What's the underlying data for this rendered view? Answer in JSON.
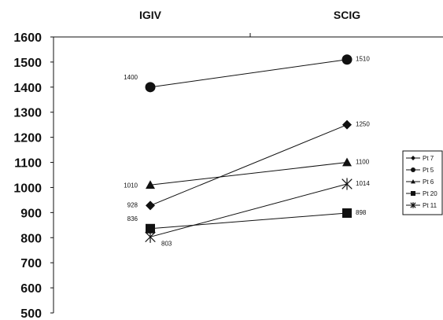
{
  "chart_data": {
    "type": "line",
    "title": "",
    "xlabel": "",
    "ylabel": "",
    "categories": [
      "IGIV",
      "SCIG"
    ],
    "ylim": [
      500,
      1600
    ],
    "yticks": [
      500,
      600,
      700,
      800,
      900,
      1000,
      1100,
      1200,
      1300,
      1400,
      1500,
      1600
    ],
    "grid": false,
    "legend": "right",
    "series": [
      {
        "name": "Pt 7",
        "marker": "diamond",
        "values": [
          928,
          1250
        ],
        "labels": [
          "928",
          "1250"
        ]
      },
      {
        "name": "Pt 5",
        "marker": "circle",
        "values": [
          1400,
          1510
        ],
        "labels": [
          "1400",
          "1510"
        ]
      },
      {
        "name": "Pt 6",
        "marker": "triangle",
        "values": [
          1010,
          1100
        ],
        "labels": [
          "1010",
          "1100"
        ]
      },
      {
        "name": "Pt 20",
        "marker": "square",
        "values": [
          836,
          898
        ],
        "labels": [
          "836",
          "898"
        ]
      },
      {
        "name": "Pt 11",
        "marker": "asterisk",
        "values": [
          803,
          1014
        ],
        "labels": [
          "803",
          "1014"
        ]
      }
    ]
  }
}
